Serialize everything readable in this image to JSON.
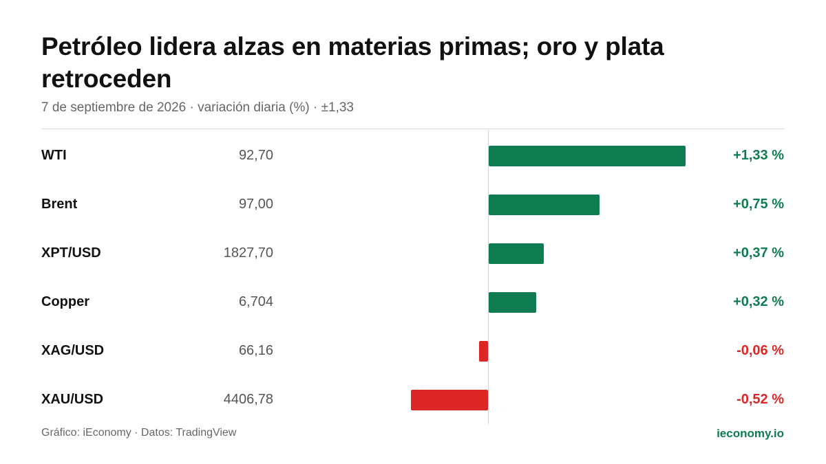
{
  "header": {
    "title": "Petróleo lidera alzas en materias primas; oro y plata retroceden",
    "subtitle": "7 de septiembre de 2026 · variación diaria (%) · ±1,33"
  },
  "footer": {
    "source": "Gráfico: iEconomy · Datos: TradingView",
    "brand": "ieconomy.io"
  },
  "colors": {
    "positive": "#0f7b50",
    "negative": "#dd2626"
  },
  "chart_data": {
    "type": "bar",
    "orientation": "horizontal",
    "title": "Petróleo lidera alzas en materias primas; oro y plata retroceden",
    "subtitle": "7 de septiembre de 2026 · variación diaria (%) · ±1,33",
    "xlim": [
      -1.33,
      1.33
    ],
    "grid": false,
    "rows": [
      {
        "name": "WTI",
        "price": "92,70",
        "value": 1.33,
        "label": "+1,33 %"
      },
      {
        "name": "Brent",
        "price": "97,00",
        "value": 0.75,
        "label": "+0,75 %"
      },
      {
        "name": "XPT/USD",
        "price": "1827,70",
        "value": 0.37,
        "label": "+0,37 %"
      },
      {
        "name": "Copper",
        "price": "6,704",
        "value": 0.32,
        "label": "+0,32 %"
      },
      {
        "name": "XAG/USD",
        "price": "66,16",
        "value": -0.06,
        "label": "-0,06 %"
      },
      {
        "name": "XAU/USD",
        "price": "4406,78",
        "value": -0.52,
        "label": "-0,52 %"
      }
    ]
  }
}
